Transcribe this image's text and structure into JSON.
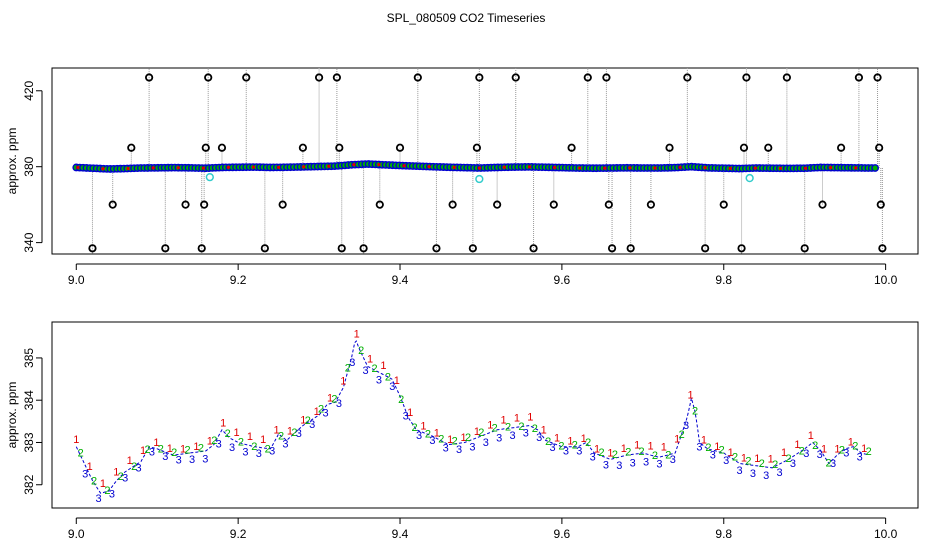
{
  "title": "SPL_080509  CO2 Timeseries",
  "colors": {
    "outlier": "#000000",
    "channel1": "#e00000",
    "channel2": "#00b000",
    "channel3": "#0000d0",
    "flagged": "#33cccc",
    "connector": "#999999"
  },
  "chart_data": [
    {
      "type": "scatter",
      "title": "",
      "xlabel": "",
      "ylabel": "approx. ppm",
      "xlim": [
        8.97,
        10.04
      ],
      "ylim": [
        334,
        432
      ],
      "xticks": [
        9.0,
        9.2,
        9.4,
        9.6,
        9.8,
        10.0
      ],
      "xtick_labels": [
        "9.0",
        "9.2",
        "9.4",
        "9.6",
        "9.8",
        "10.0"
      ],
      "yticks": [
        340,
        380,
        420
      ],
      "ytick_labels": [
        "340",
        "380",
        "420"
      ],
      "grid": false,
      "legend": "none",
      "baseline": [
        [
          9.0,
          379.6
        ],
        [
          9.02,
          379.2
        ],
        [
          9.04,
          378.8
        ],
        [
          9.06,
          379.0
        ],
        [
          9.08,
          379.3
        ],
        [
          9.1,
          379.4
        ],
        [
          9.12,
          379.5
        ],
        [
          9.14,
          379.4
        ],
        [
          9.16,
          379.2
        ],
        [
          9.18,
          379.6
        ],
        [
          9.2,
          379.7
        ],
        [
          9.22,
          379.8
        ],
        [
          9.24,
          379.6
        ],
        [
          9.26,
          379.7
        ],
        [
          9.28,
          379.9
        ],
        [
          9.3,
          380.1
        ],
        [
          9.32,
          380.3
        ],
        [
          9.34,
          381.0
        ],
        [
          9.36,
          381.4
        ],
        [
          9.38,
          381.0
        ],
        [
          9.4,
          380.6
        ],
        [
          9.42,
          380.3
        ],
        [
          9.44,
          380.0
        ],
        [
          9.46,
          379.7
        ],
        [
          9.48,
          379.5
        ],
        [
          9.5,
          379.3
        ],
        [
          9.52,
          379.6
        ],
        [
          9.54,
          379.8
        ],
        [
          9.56,
          379.9
        ],
        [
          9.58,
          379.7
        ],
        [
          9.6,
          379.5
        ],
        [
          9.62,
          379.3
        ],
        [
          9.64,
          379.2
        ],
        [
          9.66,
          379.3
        ],
        [
          9.68,
          379.4
        ],
        [
          9.7,
          379.3
        ],
        [
          9.72,
          379.3
        ],
        [
          9.74,
          379.5
        ],
        [
          9.76,
          380.0
        ],
        [
          9.78,
          379.4
        ],
        [
          9.8,
          379.2
        ],
        [
          9.82,
          379.0
        ],
        [
          9.84,
          379.3
        ],
        [
          9.86,
          379.2
        ],
        [
          9.88,
          379.1
        ],
        [
          9.9,
          379.2
        ],
        [
          9.92,
          379.6
        ],
        [
          9.94,
          379.5
        ],
        [
          9.96,
          379.4
        ],
        [
          9.98,
          379.3
        ],
        [
          9.99,
          379.3
        ]
      ],
      "outliers": [
        [
          9.02,
          337
        ],
        [
          9.045,
          360
        ],
        [
          9.068,
          390
        ],
        [
          9.09,
          427
        ],
        [
          9.11,
          337
        ],
        [
          9.135,
          360
        ],
        [
          9.155,
          337
        ],
        [
          9.158,
          360
        ],
        [
          9.16,
          390
        ],
        [
          9.163,
          427
        ],
        [
          9.18,
          390
        ],
        [
          9.21,
          427
        ],
        [
          9.233,
          337
        ],
        [
          9.255,
          360
        ],
        [
          9.28,
          390
        ],
        [
          9.3,
          427
        ],
        [
          9.322,
          427
        ],
        [
          9.325,
          390
        ],
        [
          9.328,
          337
        ],
        [
          9.355,
          337
        ],
        [
          9.375,
          360
        ],
        [
          9.4,
          390
        ],
        [
          9.422,
          427
        ],
        [
          9.445,
          337
        ],
        [
          9.465,
          360
        ],
        [
          9.49,
          337
        ],
        [
          9.495,
          390
        ],
        [
          9.498,
          427
        ],
        [
          9.52,
          360
        ],
        [
          9.543,
          427
        ],
        [
          9.565,
          337
        ],
        [
          9.59,
          360
        ],
        [
          9.612,
          390
        ],
        [
          9.632,
          427
        ],
        [
          9.655,
          427
        ],
        [
          9.658,
          360
        ],
        [
          9.662,
          337
        ],
        [
          9.685,
          337
        ],
        [
          9.71,
          360
        ],
        [
          9.733,
          390
        ],
        [
          9.755,
          427
        ],
        [
          9.777,
          337
        ],
        [
          9.8,
          360
        ],
        [
          9.822,
          337
        ],
        [
          9.825,
          390
        ],
        [
          9.828,
          427
        ],
        [
          9.855,
          390
        ],
        [
          9.878,
          427
        ],
        [
          9.9,
          337
        ],
        [
          9.922,
          360
        ],
        [
          9.945,
          390
        ],
        [
          9.967,
          427
        ],
        [
          9.99,
          427
        ],
        [
          9.992,
          390
        ],
        [
          9.994,
          360
        ],
        [
          9.996,
          337
        ]
      ],
      "flagged": [
        [
          9.165,
          374.5
        ],
        [
          9.498,
          373.5
        ],
        [
          9.832,
          374.0
        ]
      ]
    },
    {
      "type": "scatter",
      "title": "",
      "xlabel": "",
      "ylabel": "approx. ppm",
      "xlim": [
        8.97,
        10.04
      ],
      "ylim": [
        381.45,
        385.85
      ],
      "xticks": [
        9.0,
        9.2,
        9.4,
        9.6,
        9.8,
        10.0
      ],
      "xtick_labels": [
        "9.0",
        "9.2",
        "9.4",
        "9.6",
        "9.8",
        "10.0"
      ],
      "yticks": [
        382,
        383,
        384,
        385
      ],
      "ytick_labels": [
        "382",
        "383",
        "384",
        "385"
      ],
      "grid": false,
      "legend": "none",
      "point_symbols": [
        "1",
        "2",
        "3"
      ],
      "series_path": [
        [
          9.0,
          382.9
        ],
        [
          9.01,
          382.5
        ],
        [
          9.02,
          382.1
        ],
        [
          9.03,
          381.8
        ],
        [
          9.04,
          381.85
        ],
        [
          9.05,
          382.1
        ],
        [
          9.06,
          382.3
        ],
        [
          9.08,
          382.55
        ],
        [
          9.09,
          382.9
        ],
        [
          9.1,
          382.85
        ],
        [
          9.12,
          382.7
        ],
        [
          9.14,
          382.75
        ],
        [
          9.16,
          382.8
        ],
        [
          9.17,
          382.95
        ],
        [
          9.18,
          383.3
        ],
        [
          9.19,
          383.1
        ],
        [
          9.2,
          383.0
        ],
        [
          9.22,
          382.9
        ],
        [
          9.24,
          382.85
        ],
        [
          9.25,
          383.2
        ],
        [
          9.26,
          383.05
        ],
        [
          9.28,
          383.4
        ],
        [
          9.3,
          383.65
        ],
        [
          9.31,
          383.9
        ],
        [
          9.32,
          383.95
        ],
        [
          9.33,
          384.3
        ],
        [
          9.34,
          385.0
        ],
        [
          9.345,
          385.45
        ],
        [
          9.35,
          385.2
        ],
        [
          9.36,
          384.8
        ],
        [
          9.38,
          384.6
        ],
        [
          9.39,
          384.5
        ],
        [
          9.4,
          384.1
        ],
        [
          9.41,
          383.6
        ],
        [
          9.42,
          383.3
        ],
        [
          9.44,
          383.15
        ],
        [
          9.46,
          382.95
        ],
        [
          9.48,
          383.0
        ],
        [
          9.5,
          383.15
        ],
        [
          9.52,
          383.3
        ],
        [
          9.54,
          383.35
        ],
        [
          9.56,
          383.4
        ],
        [
          9.57,
          383.3
        ],
        [
          9.58,
          383.05
        ],
        [
          9.6,
          382.9
        ],
        [
          9.62,
          382.9
        ],
        [
          9.63,
          383.0
        ],
        [
          9.64,
          382.75
        ],
        [
          9.66,
          382.6
        ],
        [
          9.68,
          382.7
        ],
        [
          9.7,
          382.75
        ],
        [
          9.72,
          382.65
        ],
        [
          9.74,
          382.75
        ],
        [
          9.755,
          383.6
        ],
        [
          9.76,
          384.05
        ],
        [
          9.765,
          383.7
        ],
        [
          9.77,
          383.0
        ],
        [
          9.78,
          382.85
        ],
        [
          9.8,
          382.75
        ],
        [
          9.82,
          382.5
        ],
        [
          9.84,
          382.45
        ],
        [
          9.86,
          382.4
        ],
        [
          9.88,
          382.6
        ],
        [
          9.9,
          382.85
        ],
        [
          9.91,
          383.0
        ],
        [
          9.92,
          382.8
        ],
        [
          9.93,
          382.5
        ],
        [
          9.94,
          382.7
        ],
        [
          9.95,
          382.85
        ],
        [
          9.96,
          382.9
        ],
        [
          9.97,
          382.75
        ],
        [
          9.98,
          382.7
        ]
      ]
    }
  ]
}
